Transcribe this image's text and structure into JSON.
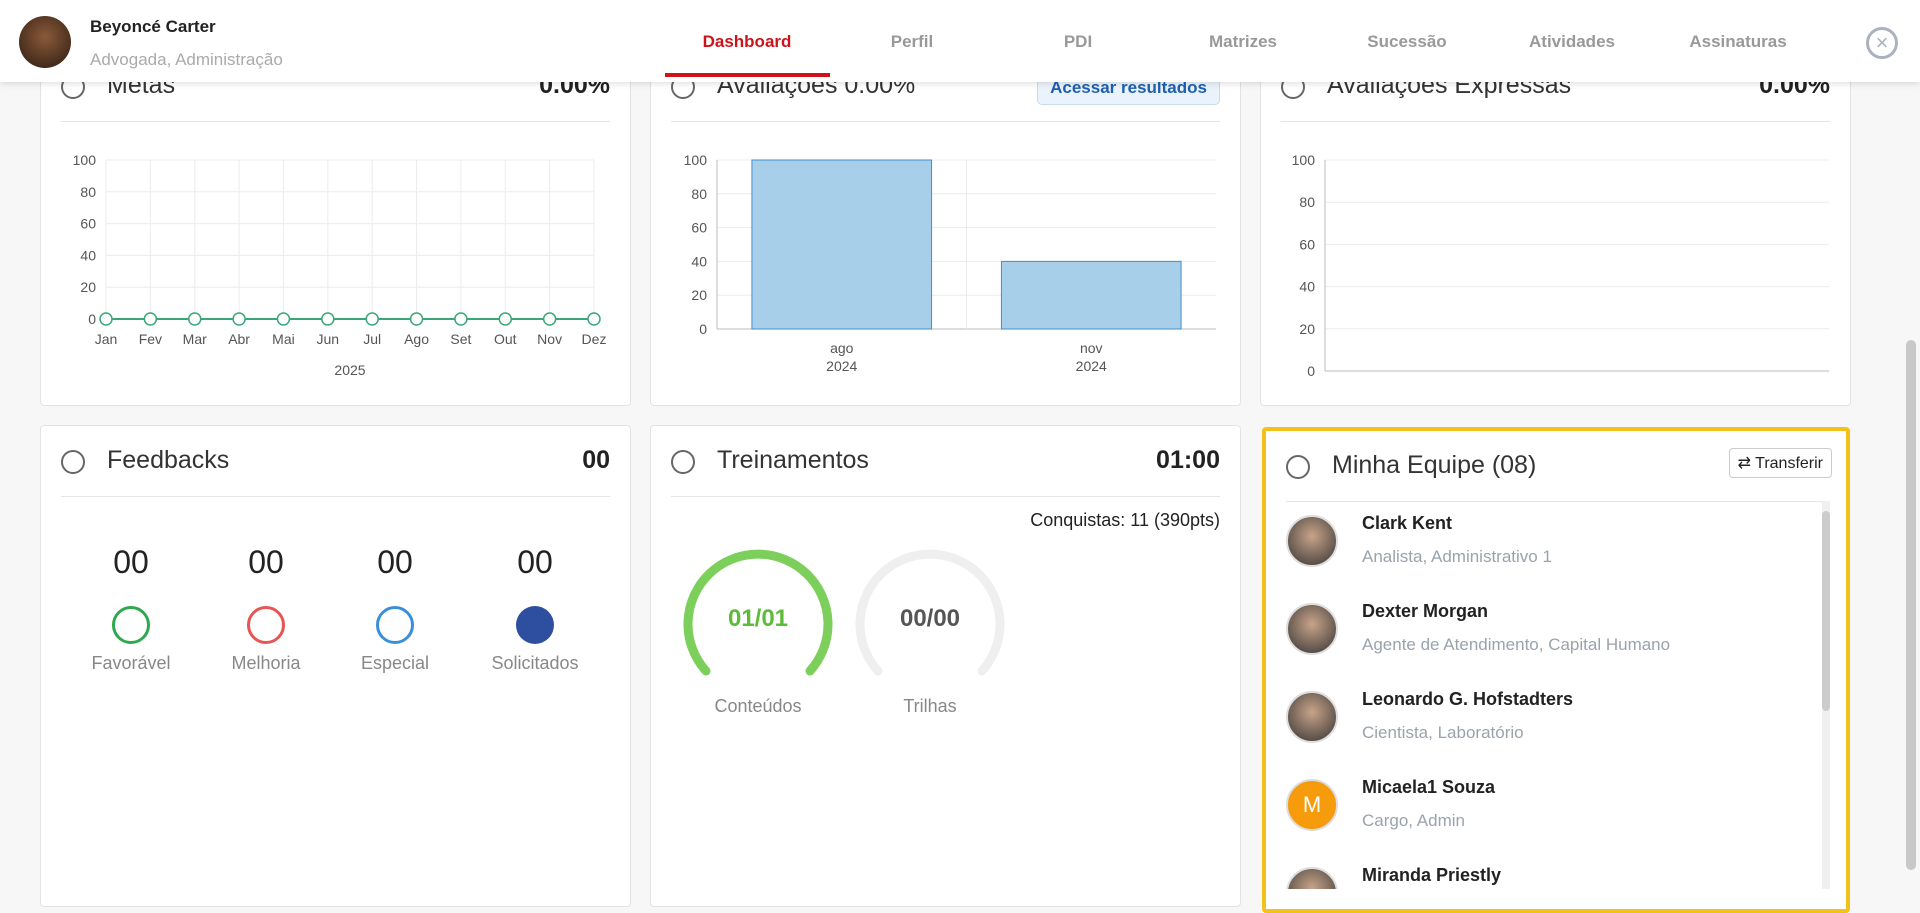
{
  "header": {
    "user_name": "Beyoncé Carter",
    "user_role": "Advogada, Administração",
    "nav": [
      "Dashboard",
      "Perfil",
      "PDI",
      "Matrizes",
      "Sucessão",
      "Atividades",
      "Assinaturas"
    ]
  },
  "chart_data": [
    {
      "type": "line",
      "title": "Metas",
      "value_text": "0.00%",
      "x_label": "2025",
      "categories": [
        "Jan",
        "Fev",
        "Mar",
        "Abr",
        "Mai",
        "Jun",
        "Jul",
        "Ago",
        "Set",
        "Out",
        "Nov",
        "Dez"
      ],
      "values": [
        0,
        0,
        0,
        0,
        0,
        0,
        0,
        0,
        0,
        0,
        0,
        0
      ],
      "color": "#3aa77a",
      "ylim": [
        0,
        100
      ],
      "yticks": [
        0,
        20,
        40,
        60,
        80,
        100
      ],
      "grid": true
    },
    {
      "type": "bar",
      "title": "Avaliações 0.00%",
      "button": "Acessar resultados",
      "categories": [
        [
          "ago",
          "2024"
        ],
        [
          "nov",
          "2024"
        ]
      ],
      "values": [
        100,
        40
      ],
      "color": "#a8cfe9",
      "ylim": [
        0,
        100
      ],
      "yticks": [
        0,
        20,
        40,
        60,
        80,
        100
      ],
      "grid": true
    },
    {
      "type": "line",
      "title": "Avaliações Expressas",
      "value_text": "0.00%",
      "categories": [],
      "values": [],
      "color": "#3aa77a",
      "ylim": [
        0,
        100
      ],
      "yticks": [
        0,
        20,
        40,
        60,
        80,
        100
      ],
      "grid": true
    }
  ],
  "feedbacks": {
    "title": "Feedbacks",
    "total": "00",
    "items": [
      {
        "count": "00",
        "label": "Favorável"
      },
      {
        "count": "00",
        "label": "Melhoria"
      },
      {
        "count": "00",
        "label": "Especial"
      },
      {
        "count": "00",
        "label": "Solicitados"
      }
    ]
  },
  "treinamentos": {
    "title": "Treinamentos",
    "value": "01:00",
    "conquistas": "Conquistas: 11 (390pts)",
    "gauges": [
      {
        "value": "01/01",
        "label": "Conteúdos"
      },
      {
        "value": "00/00",
        "label": "Trilhas"
      }
    ]
  },
  "equipe": {
    "title": "Minha Equipe (08)",
    "button": "Transferir",
    "members": [
      {
        "name": "Clark Kent",
        "role": "Analista, Administrativo 1"
      },
      {
        "name": "Dexter Morgan",
        "role": "Agente de Atendimento, Capital Humano"
      },
      {
        "name": "Leonardo G. Hofstadters",
        "role": "Cientista, Laboratório"
      },
      {
        "name": "Micaela1 Souza",
        "role": "Cargo, Admin",
        "initial": "M"
      },
      {
        "name": "Miranda Priestly",
        "role": ""
      }
    ]
  }
}
